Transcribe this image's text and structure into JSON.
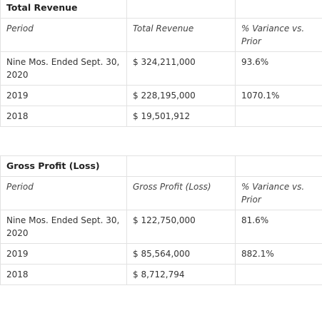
{
  "sections": [
    {
      "title": "Total Revenue",
      "headers": [
        "Period",
        "Total Revenue",
        "% Variance vs. Prior"
      ],
      "rows": [
        [
          "Nine Mos. Ended Sept. 30, 2020",
          "$ 324,211,000",
          "93.6%"
        ],
        [
          "2019",
          "$ 228,195,000",
          "1070.1%"
        ],
        [
          "2018",
          "$ 19,501,912",
          ""
        ]
      ]
    },
    {
      "title": "Gross Profit (Loss)",
      "headers": [
        "Period",
        "Gross Profit (Loss)",
        "% Variance vs. Prior"
      ],
      "rows": [
        [
          "Nine Mos. Ended Sept. 30, 2020",
          "$ 122,750,000",
          "81.6%"
        ],
        [
          "2019",
          "$ 85,564,000",
          "882.1%"
        ],
        [
          "2018",
          "$ 8,712,794",
          ""
        ]
      ]
    }
  ]
}
